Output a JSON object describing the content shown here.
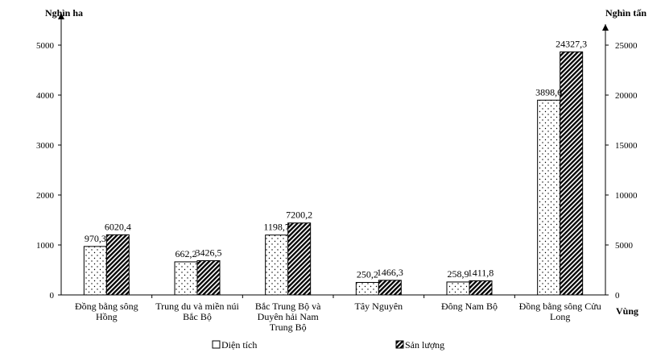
{
  "chart_data": {
    "type": "bar",
    "left_unit": "Nghìn ha",
    "right_unit": "Nghìn tấn",
    "x_axis_label": "Vùng",
    "categories": [
      [
        "Đồng bằng  sông",
        "Hồng"
      ],
      [
        "Trung du và miền núi",
        "Bắc Bộ"
      ],
      [
        "Bắc Trung Bộ và",
        "Duyên hải Nam",
        "Trung Bộ"
      ],
      [
        "Tây Nguyên"
      ],
      [
        "Đông Nam Bộ"
      ],
      [
        "Đồng bằng  sông Cửu",
        "Long"
      ]
    ],
    "series": [
      {
        "name": "Diện tích",
        "axis": "left",
        "pattern": "dots",
        "values": [
          970.3,
          662.2,
          1198.7,
          250.2,
          258.9,
          3898.6
        ],
        "labels": [
          "970,3",
          "662,2",
          "1198,7",
          "250,2",
          "258,9",
          "3898,6"
        ]
      },
      {
        "name": "Sản lượng",
        "axis": "right",
        "pattern": "hatch",
        "values": [
          6020.4,
          3426.5,
          7200.2,
          1466.3,
          1411.8,
          24327.3
        ],
        "labels": [
          "6020,4",
          "3426,5",
          "7200,2",
          "1466,3",
          "1411,8",
          "24327,3"
        ]
      }
    ],
    "y_left": {
      "min": 0,
      "max": 5500,
      "ticks": [
        0,
        1000,
        2000,
        3000,
        4000,
        5000
      ]
    },
    "y_right": {
      "min": 0,
      "max": 27500,
      "ticks": [
        0,
        5000,
        10000,
        15000,
        20000,
        25000
      ]
    },
    "legend_position": "bottom",
    "grid": false
  }
}
